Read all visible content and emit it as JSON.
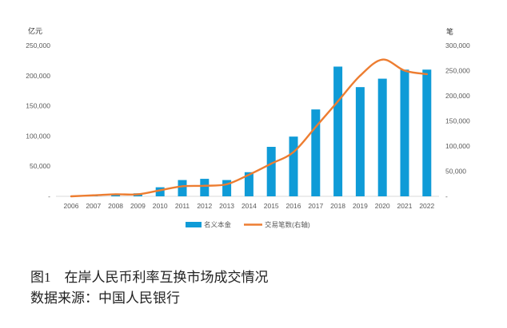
{
  "chart_data": {
    "type": "bar",
    "categories": [
      "2006",
      "2007",
      "2008",
      "2009",
      "2010",
      "2011",
      "2012",
      "2013",
      "2014",
      "2015",
      "2016",
      "2017",
      "2018",
      "2019",
      "2020",
      "2021",
      "2022"
    ],
    "series": [
      {
        "name": "名义本金",
        "type": "bar",
        "axis": "left",
        "values": [
          0,
          2000,
          4000,
          5000,
          15000,
          27000,
          29000,
          27000,
          40000,
          82000,
          99000,
          144000,
          215000,
          181000,
          195000,
          210000,
          210000
        ]
      },
      {
        "name": "交易笔数(右轴)",
        "type": "line",
        "axis": "right",
        "values": [
          0,
          2000,
          4000,
          4000,
          12000,
          20000,
          21000,
          24000,
          43000,
          65000,
          88000,
          138000,
          189000,
          240000,
          272000,
          250000,
          243000
        ]
      }
    ],
    "y_left": {
      "unit": "亿元",
      "ylim": [
        0,
        250000
      ],
      "ticks": [
        0,
        50000,
        100000,
        150000,
        200000,
        250000
      ],
      "tick_labels": [
        "-",
        "50,000",
        "100,000",
        "150,000",
        "200,000",
        "250,000"
      ]
    },
    "y_right": {
      "unit": "笔",
      "ylim": [
        0,
        300000
      ],
      "ticks": [
        0,
        50000,
        100000,
        150000,
        200000,
        250000,
        300000
      ],
      "tick_labels": [
        "-",
        "50,000",
        "100,000",
        "150,000",
        "200,000",
        "250,000",
        "300,000"
      ]
    },
    "grid": false,
    "legend": "bottom-center"
  },
  "colors": {
    "bar": "#0f9bd7",
    "line": "#ed7d31",
    "axis_line": "#d9d9d9"
  },
  "caption": {
    "label": "图1",
    "title": "在岸人民币利率互换市场成交情况",
    "source": "数据来源：中国人民银行"
  }
}
